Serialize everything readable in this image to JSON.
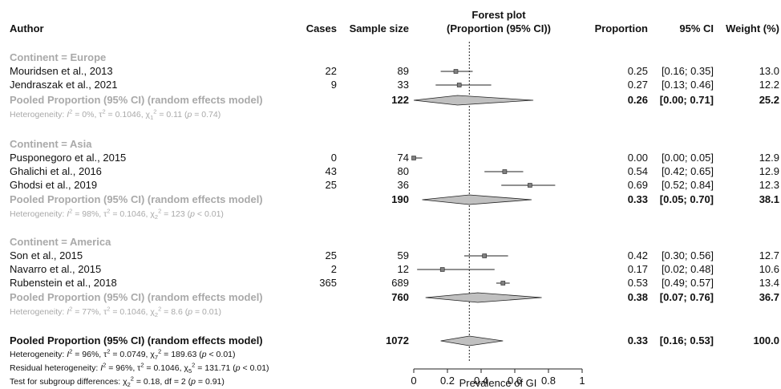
{
  "headers": {
    "author": "Author",
    "cases": "Cases",
    "sample_size": "Sample size",
    "plot_title_1": "Forest plot",
    "plot_title_2": "(Proportion (95% CI))",
    "proportion": "Proportion",
    "ci": "95% CI",
    "weight": "Weight (%)"
  },
  "groups": [
    {
      "label": "Continent = Europe",
      "studies": [
        {
          "author": "Mouridsen et al., 2013",
          "cases": "22",
          "n": "89",
          "prop": "0.25",
          "ci": "[0.16; 0.35]",
          "weight": "13.0"
        },
        {
          "author": "Jendraszak et al., 2021",
          "cases": "9",
          "n": "33",
          "prop": "0.27",
          "ci": "[0.13; 0.46]",
          "weight": "12.2"
        }
      ],
      "pooled": {
        "label": "Pooled Proportion (95% CI) (random effects model)",
        "n": "122",
        "prop": "0.26",
        "ci": "[0.00; 0.71]",
        "weight": "25.2"
      },
      "heterogeneity": {
        "pre": "Heterogeneity: ",
        "i2": "I",
        "i2_val": " = 0%, ",
        "tau": "τ",
        "tau_val": " = 0.1046, ",
        "chi": "χ",
        "df": "1",
        "chi_val": " = 0.11 (",
        "p": "p",
        "p_val": " = 0.74)"
      }
    },
    {
      "label": "Continent = Asia",
      "studies": [
        {
          "author": "Pusponegoro et al., 2015",
          "cases": "0",
          "n": "74",
          "prop": "0.00",
          "ci": "[0.00; 0.05]",
          "weight": "12.9"
        },
        {
          "author": "Ghalichi et al., 2016",
          "cases": "43",
          "n": "80",
          "prop": "0.54",
          "ci": "[0.42; 0.65]",
          "weight": "12.9"
        },
        {
          "author": "Ghodsi et al., 2019",
          "cases": "25",
          "n": "36",
          "prop": "0.69",
          "ci": "[0.52; 0.84]",
          "weight": "12.3"
        }
      ],
      "pooled": {
        "label": "Pooled Proportion (95% CI) (random effects model)",
        "n": "190",
        "prop": "0.33",
        "ci": "[0.05; 0.70]",
        "weight": "38.1"
      },
      "heterogeneity": {
        "pre": "Heterogeneity: ",
        "i2": "I",
        "i2_val": " = 98%, ",
        "tau": "τ",
        "tau_val": " = 0.1046, ",
        "chi": "χ",
        "df": "2",
        "chi_val": " = 123 (",
        "p": "p",
        "p_val": " < 0.01)"
      }
    },
    {
      "label": "Continent = America",
      "studies": [
        {
          "author": "Son et al., 2015",
          "cases": "25",
          "n": "59",
          "prop": "0.42",
          "ci": "[0.30; 0.56]",
          "weight": "12.7"
        },
        {
          "author": "Navarro et al., 2015",
          "cases": "2",
          "n": "12",
          "prop": "0.17",
          "ci": "[0.02; 0.48]",
          "weight": "10.6"
        },
        {
          "author": "Rubenstein et al., 2018",
          "cases": "365",
          "n": "689",
          "prop": "0.53",
          "ci": "[0.49; 0.57]",
          "weight": "13.4"
        }
      ],
      "pooled": {
        "label": "Pooled Proportion (95% CI) (random effects model)",
        "n": "760",
        "prop": "0.38",
        "ci": "[0.07; 0.76]",
        "weight": "36.7"
      },
      "heterogeneity": {
        "pre": "Heterogeneity: ",
        "i2": "I",
        "i2_val": " = 77%, ",
        "tau": "τ",
        "tau_val": " = 0.1046, ",
        "chi": "χ",
        "df": "2",
        "chi_val": " = 8.6 (",
        "p": "p",
        "p_val": " = 0.01)"
      }
    }
  ],
  "overall": {
    "label": "Pooled Proportion (95% CI) (random effects model)",
    "n": "1072",
    "prop": "0.33",
    "ci": "[0.16; 0.53]",
    "weight": "100.0",
    "het1": {
      "pre": "Heterogeneity: ",
      "i2": "I",
      "i2_val": " = 96%, ",
      "tau": "τ",
      "tau_val": " = 0.0749, ",
      "chi": "χ",
      "df": "7",
      "chi_val": " = 189.63 (",
      "p": "p",
      "p_val": " < 0.01)"
    },
    "het2": {
      "pre": "Residual heterogeneity: ",
      "i2": "I",
      "i2_val": " = 96%, ",
      "tau": "τ",
      "tau_val": " = 0.1046, ",
      "chi": "χ",
      "df": "5",
      "chi_val": " = 131.71 (",
      "p": "p",
      "p_val": " < 0.01)"
    },
    "het3": {
      "pre": "Test for subgroup differences: ",
      "chi": "χ",
      "df": "2",
      "chi_val": " = 0.18, df = 2 (",
      "p": "p",
      "p_val": " = 0.91)"
    }
  },
  "chart_data": {
    "type": "forest",
    "xlabel": "Prevalence of GI",
    "xlim": [
      0,
      1
    ],
    "ticks": [
      0,
      0.2,
      0.4,
      0.6,
      0.8,
      1
    ],
    "tick_labels": [
      "0",
      "0.2",
      "0.4",
      "0.6",
      "0.8",
      "1"
    ],
    "reference_line": 0.33,
    "studies": [
      {
        "row": "Mouridsen et al., 2013",
        "est": 0.25,
        "lo": 0.16,
        "hi": 0.35
      },
      {
        "row": "Jendraszak et al., 2021",
        "est": 0.27,
        "lo": 0.13,
        "hi": 0.46
      },
      {
        "row": "Pusponegoro et al., 2015",
        "est": 0.0,
        "lo": 0.0,
        "hi": 0.05
      },
      {
        "row": "Ghalichi et al., 2016",
        "est": 0.54,
        "lo": 0.42,
        "hi": 0.65
      },
      {
        "row": "Ghodsi et al., 2019",
        "est": 0.69,
        "lo": 0.52,
        "hi": 0.84
      },
      {
        "row": "Son et al., 2015",
        "est": 0.42,
        "lo": 0.3,
        "hi": 0.56
      },
      {
        "row": "Navarro et al., 2015",
        "est": 0.17,
        "lo": 0.02,
        "hi": 0.48
      },
      {
        "row": "Rubenstein et al., 2018",
        "est": 0.53,
        "lo": 0.49,
        "hi": 0.57
      }
    ],
    "pooled": [
      {
        "row": "Europe pooled",
        "est": 0.26,
        "lo": 0.0,
        "hi": 0.71
      },
      {
        "row": "Asia pooled",
        "est": 0.33,
        "lo": 0.05,
        "hi": 0.7
      },
      {
        "row": "America pooled",
        "est": 0.38,
        "lo": 0.07,
        "hi": 0.76
      },
      {
        "row": "Overall pooled",
        "est": 0.33,
        "lo": 0.16,
        "hi": 0.53
      }
    ],
    "colors": {
      "study_box": "#808080",
      "diamond_fill": "#c0c0c0",
      "text_grey": "#a9a9a9"
    }
  }
}
